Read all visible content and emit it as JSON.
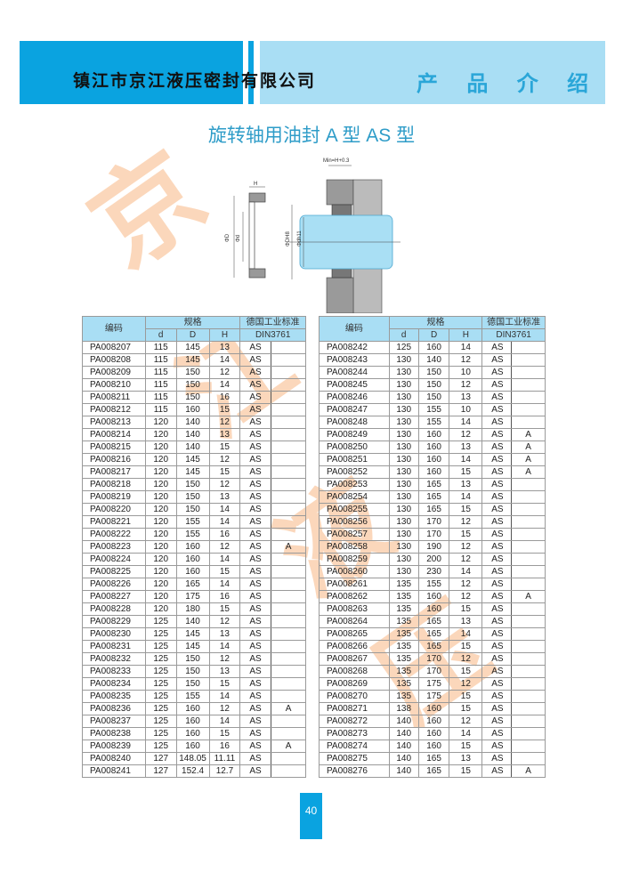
{
  "header": {
    "company": "镇江市京江液压密封有限公司",
    "section": "产 品 介 绍"
  },
  "title": "旋转轴用油封 A 型   AS 型",
  "diagram": {
    "min_label": "Min=H+0.3",
    "h_label": "H",
    "d_outer_label": "ΦD",
    "d_inner_label": "Φd",
    "dh8_label": "ΦDH8",
    "dh11_label": "Φdh11"
  },
  "watermark": [
    "京",
    "江",
    "液",
    "压"
  ],
  "table_headers": {
    "code": "编码",
    "spec": "规格",
    "d": "d",
    "D": "D",
    "H": "H",
    "std": "德国工业标准",
    "din": "DIN3761"
  },
  "left_rows": [
    [
      "PA008207",
      "115",
      "145",
      "13",
      "AS",
      ""
    ],
    [
      "PA008208",
      "115",
      "145",
      "14",
      "AS",
      ""
    ],
    [
      "PA008209",
      "115",
      "150",
      "12",
      "AS",
      ""
    ],
    [
      "PA008210",
      "115",
      "150",
      "14",
      "AS",
      ""
    ],
    [
      "PA008211",
      "115",
      "150",
      "16",
      "AS",
      ""
    ],
    [
      "PA008212",
      "115",
      "160",
      "15",
      "AS",
      ""
    ],
    [
      "PA008213",
      "120",
      "140",
      "12",
      "AS",
      ""
    ],
    [
      "PA008214",
      "120",
      "140",
      "13",
      "AS",
      ""
    ],
    [
      "PA008215",
      "120",
      "140",
      "15",
      "AS",
      ""
    ],
    [
      "PA008216",
      "120",
      "145",
      "12",
      "AS",
      ""
    ],
    [
      "PA008217",
      "120",
      "145",
      "15",
      "AS",
      ""
    ],
    [
      "PA008218",
      "120",
      "150",
      "12",
      "AS",
      ""
    ],
    [
      "PA008219",
      "120",
      "150",
      "13",
      "AS",
      ""
    ],
    [
      "PA008220",
      "120",
      "150",
      "14",
      "AS",
      ""
    ],
    [
      "PA008221",
      "120",
      "155",
      "14",
      "AS",
      ""
    ],
    [
      "PA008222",
      "120",
      "155",
      "16",
      "AS",
      ""
    ],
    [
      "PA008223",
      "120",
      "160",
      "12",
      "AS",
      "A"
    ],
    [
      "PA008224",
      "120",
      "160",
      "14",
      "AS",
      ""
    ],
    [
      "PA008225",
      "120",
      "160",
      "15",
      "AS",
      ""
    ],
    [
      "PA008226",
      "120",
      "165",
      "14",
      "AS",
      ""
    ],
    [
      "PA008227",
      "120",
      "175",
      "16",
      "AS",
      ""
    ],
    [
      "PA008228",
      "120",
      "180",
      "15",
      "AS",
      ""
    ],
    [
      "PA008229",
      "125",
      "140",
      "12",
      "AS",
      ""
    ],
    [
      "PA008230",
      "125",
      "145",
      "13",
      "AS",
      ""
    ],
    [
      "PA008231",
      "125",
      "145",
      "14",
      "AS",
      ""
    ],
    [
      "PA008232",
      "125",
      "150",
      "12",
      "AS",
      ""
    ],
    [
      "PA008233",
      "125",
      "150",
      "13",
      "AS",
      ""
    ],
    [
      "PA008234",
      "125",
      "150",
      "15",
      "AS",
      ""
    ],
    [
      "PA008235",
      "125",
      "155",
      "14",
      "AS",
      ""
    ],
    [
      "PA008236",
      "125",
      "160",
      "12",
      "AS",
      "A"
    ],
    [
      "PA008237",
      "125",
      "160",
      "14",
      "AS",
      ""
    ],
    [
      "PA008238",
      "125",
      "160",
      "15",
      "AS",
      ""
    ],
    [
      "PA008239",
      "125",
      "160",
      "16",
      "AS",
      "A"
    ],
    [
      "PA008240",
      "127",
      "148.05",
      "11.11",
      "AS",
      ""
    ],
    [
      "PA008241",
      "127",
      "152.4",
      "12.7",
      "AS",
      ""
    ]
  ],
  "right_rows": [
    [
      "PA008242",
      "125",
      "160",
      "14",
      "AS",
      ""
    ],
    [
      "PA008243",
      "130",
      "140",
      "12",
      "AS",
      ""
    ],
    [
      "PA008244",
      "130",
      "150",
      "10",
      "AS",
      ""
    ],
    [
      "PA008245",
      "130",
      "150",
      "12",
      "AS",
      ""
    ],
    [
      "PA008246",
      "130",
      "150",
      "13",
      "AS",
      ""
    ],
    [
      "PA008247",
      "130",
      "155",
      "10",
      "AS",
      ""
    ],
    [
      "PA008248",
      "130",
      "155",
      "14",
      "AS",
      ""
    ],
    [
      "PA008249",
      "130",
      "160",
      "12",
      "AS",
      "A"
    ],
    [
      "PA008250",
      "130",
      "160",
      "13",
      "AS",
      "A"
    ],
    [
      "PA008251",
      "130",
      "160",
      "14",
      "AS",
      "A"
    ],
    [
      "PA008252",
      "130",
      "160",
      "15",
      "AS",
      "A"
    ],
    [
      "PA008253",
      "130",
      "165",
      "13",
      "AS",
      ""
    ],
    [
      "PA008254",
      "130",
      "165",
      "14",
      "AS",
      ""
    ],
    [
      "PA008255",
      "130",
      "165",
      "15",
      "AS",
      ""
    ],
    [
      "PA008256",
      "130",
      "170",
      "12",
      "AS",
      ""
    ],
    [
      "PA008257",
      "130",
      "170",
      "15",
      "AS",
      ""
    ],
    [
      "PA008258",
      "130",
      "190",
      "12",
      "AS",
      ""
    ],
    [
      "PA008259",
      "130",
      "200",
      "12",
      "AS",
      ""
    ],
    [
      "PA008260",
      "130",
      "230",
      "14",
      "AS",
      ""
    ],
    [
      "PA008261",
      "135",
      "155",
      "12",
      "AS",
      ""
    ],
    [
      "PA008262",
      "135",
      "160",
      "12",
      "AS",
      "A"
    ],
    [
      "PA008263",
      "135",
      "160",
      "15",
      "AS",
      ""
    ],
    [
      "PA008264",
      "135",
      "165",
      "13",
      "AS",
      ""
    ],
    [
      "PA008265",
      "135",
      "165",
      "14",
      "AS",
      ""
    ],
    [
      "PA008266",
      "135",
      "165",
      "15",
      "AS",
      ""
    ],
    [
      "PA008267",
      "135",
      "170",
      "12",
      "AS",
      ""
    ],
    [
      "PA008268",
      "135",
      "170",
      "15",
      "AS",
      ""
    ],
    [
      "PA008269",
      "135",
      "175",
      "12",
      "AS",
      ""
    ],
    [
      "PA008270",
      "135",
      "175",
      "15",
      "AS",
      ""
    ],
    [
      "PA008271",
      "138",
      "160",
      "15",
      "AS",
      ""
    ],
    [
      "PA008272",
      "140",
      "160",
      "12",
      "AS",
      ""
    ],
    [
      "PA008273",
      "140",
      "160",
      "14",
      "AS",
      ""
    ],
    [
      "PA008274",
      "140",
      "160",
      "15",
      "AS",
      ""
    ],
    [
      "PA008275",
      "140",
      "165",
      "13",
      "AS",
      ""
    ],
    [
      "PA008276",
      "140",
      "165",
      "15",
      "AS",
      "A"
    ]
  ],
  "page_number": "40",
  "colors": {
    "brand_blue": "#0aa3e0",
    "light_blue": "#a9def4",
    "title_blue": "#2e9cc8",
    "watermark": "#f7a25f"
  }
}
